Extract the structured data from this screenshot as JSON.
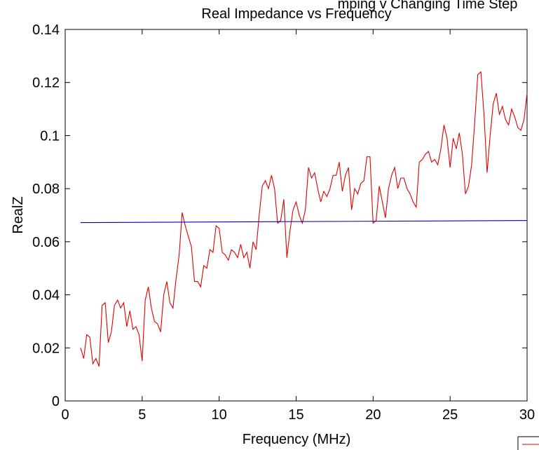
{
  "chart_data": {
    "type": "line",
    "title_partial": "mping v Changing Time Step",
    "title": "Real Impedance vs Frequency",
    "xlabel": "Frequency (MHz)",
    "ylabel": "RealZ",
    "xlim": [
      0,
      30
    ],
    "ylim": [
      0,
      0.14
    ],
    "x_ticks": [
      0,
      5,
      10,
      15,
      20,
      25,
      30
    ],
    "x_tick_labels": [
      "0",
      "5",
      "10",
      "15",
      "20",
      "25",
      "30"
    ],
    "y_ticks": [
      0,
      0.02,
      0.04,
      0.06,
      0.08,
      0.1,
      0.12,
      0.14
    ],
    "y_tick_labels": [
      "0",
      "0.02",
      "0.04",
      "0.06",
      "0.08",
      "0.1",
      "0.12",
      "0.14"
    ],
    "grid": false,
    "legend": "bottom-right (clipped)",
    "series": [
      {
        "color": "#e00000",
        "x": [
          1.0,
          1.2,
          1.4,
          1.6,
          1.8,
          2.0,
          2.2,
          2.4,
          2.6,
          2.8,
          3.0,
          3.2,
          3.4,
          3.6,
          3.8,
          4.0,
          4.2,
          4.4,
          4.6,
          4.8,
          5.0,
          5.2,
          5.4,
          5.6,
          5.8,
          6.0,
          6.2,
          6.4,
          6.6,
          6.8,
          7.0,
          7.2,
          7.4,
          7.6,
          7.8,
          8.0,
          8.2,
          8.4,
          8.6,
          8.8,
          9.0,
          9.2,
          9.4,
          9.6,
          9.8,
          10.0,
          10.2,
          10.4,
          10.6,
          10.8,
          11.0,
          11.2,
          11.4,
          11.6,
          11.8,
          12.0,
          12.2,
          12.4,
          12.6,
          12.8,
          13.0,
          13.2,
          13.4,
          13.6,
          13.8,
          14.0,
          14.2,
          14.4,
          14.6,
          14.8,
          15.0,
          15.2,
          15.4,
          15.6,
          15.8,
          16.0,
          16.2,
          16.4,
          16.6,
          16.8,
          17.0,
          17.2,
          17.4,
          17.6,
          17.8,
          18.0,
          18.2,
          18.4,
          18.6,
          18.8,
          19.0,
          19.2,
          19.4,
          19.6,
          19.8,
          20.0,
          20.2,
          20.4,
          20.6,
          20.8,
          21.0,
          21.2,
          21.4,
          21.6,
          21.8,
          22.0,
          22.2,
          22.4,
          22.6,
          22.8,
          23.0,
          23.2,
          23.4,
          23.6,
          23.8,
          24.0,
          24.2,
          24.4,
          24.6,
          24.8,
          25.0,
          25.2,
          25.4,
          25.6,
          25.8,
          26.0,
          26.2,
          26.4,
          26.6,
          26.8,
          27.0,
          27.2,
          27.4,
          27.6,
          27.8,
          28.0,
          28.2,
          28.4,
          28.6,
          28.8,
          29.0,
          29.2,
          29.4,
          29.6,
          29.8,
          30.0
        ],
        "y": [
          0.02,
          0.016,
          0.025,
          0.024,
          0.014,
          0.016,
          0.013,
          0.036,
          0.037,
          0.022,
          0.026,
          0.036,
          0.038,
          0.035,
          0.037,
          0.028,
          0.034,
          0.027,
          0.028,
          0.025,
          0.015,
          0.038,
          0.043,
          0.035,
          0.03,
          0.029,
          0.026,
          0.04,
          0.045,
          0.037,
          0.035,
          0.046,
          0.055,
          0.071,
          0.066,
          0.062,
          0.058,
          0.045,
          0.045,
          0.043,
          0.051,
          0.05,
          0.057,
          0.056,
          0.066,
          0.065,
          0.056,
          0.055,
          0.053,
          0.057,
          0.056,
          0.054,
          0.059,
          0.054,
          0.056,
          0.05,
          0.06,
          0.057,
          0.07,
          0.081,
          0.083,
          0.08,
          0.085,
          0.08,
          0.067,
          0.068,
          0.076,
          0.054,
          0.064,
          0.072,
          0.075,
          0.07,
          0.067,
          0.072,
          0.088,
          0.084,
          0.086,
          0.08,
          0.075,
          0.079,
          0.077,
          0.08,
          0.085,
          0.085,
          0.09,
          0.079,
          0.085,
          0.088,
          0.072,
          0.08,
          0.078,
          0.082,
          0.083,
          0.092,
          0.092,
          0.067,
          0.068,
          0.081,
          0.075,
          0.069,
          0.08,
          0.085,
          0.088,
          0.08,
          0.084,
          0.084,
          0.08,
          0.078,
          0.075,
          0.073,
          0.09,
          0.091,
          0.093,
          0.094,
          0.09,
          0.091,
          0.089,
          0.095,
          0.104,
          0.099,
          0.088,
          0.099,
          0.095,
          0.101,
          0.093,
          0.078,
          0.081,
          0.089,
          0.105,
          0.123,
          0.124,
          0.108,
          0.086,
          0.1,
          0.112,
          0.116,
          0.108,
          0.111,
          0.106,
          0.104,
          0.11,
          0.107,
          0.103,
          0.102,
          0.106,
          0.116
        ]
      },
      {
        "color": "#0000cc",
        "x": [
          1.0,
          30.0
        ],
        "y": [
          0.0672,
          0.068
        ]
      }
    ]
  }
}
